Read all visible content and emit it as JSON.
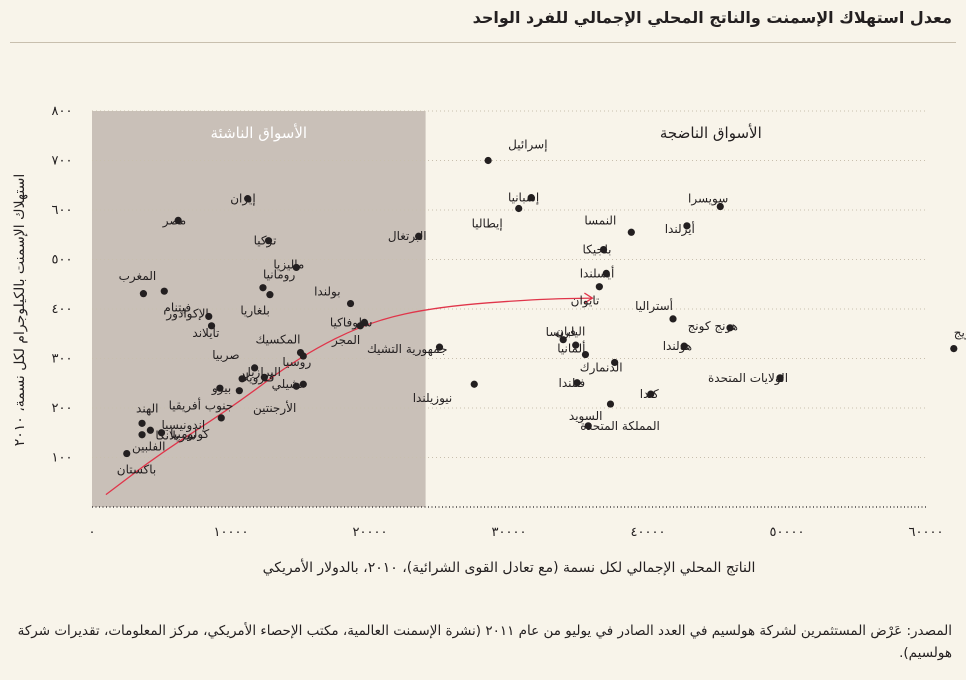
{
  "title": "معدل استهلاك الإسمنت والناتج المحلي الإجمالي للفرد الواحد",
  "source": "المصدر: عَرْض المستثمرين لشركة هولسيم في العدد الصادر في يوليو من عام ٢٠١١ (نشرة الإسمنت العالمية، مكتب الإحصاء الأمريكي، مركز المعلومات، تقديرات شركة هولسيم).",
  "colors": {
    "background": "#f8f4ea",
    "emerging_shade": "#c9c0b8",
    "point": "#231f20",
    "trend": "#e0354a"
  },
  "chart_data": {
    "type": "scatter",
    "xlabel": "الناتج المحلي الإجمالي لكل نسمة (مع تعادل القوى الشرائية)، ٢٠١٠، بالدولار الأمريكي",
    "ylabel": "استهلاك الإسمنت بالكيلوجرام لكل نسمة، ٢٠١٠",
    "xlim": [
      0,
      60000
    ],
    "ylim": [
      0,
      800
    ],
    "x_ticks": [
      {
        "v": 0,
        "label": "٠"
      },
      {
        "v": 10000,
        "label": "١٠٠٠٠"
      },
      {
        "v": 20000,
        "label": "٢٠٠٠٠"
      },
      {
        "v": 30000,
        "label": "٣٠٠٠٠"
      },
      {
        "v": 40000,
        "label": "٤٠٠٠٠"
      },
      {
        "v": 50000,
        "label": "٥٠٠٠٠"
      },
      {
        "v": 60000,
        "label": "٦٠٠٠٠"
      }
    ],
    "y_ticks": [
      {
        "v": 100,
        "label": "١٠٠"
      },
      {
        "v": 200,
        "label": "٢٠٠"
      },
      {
        "v": 300,
        "label": "٣٠٠"
      },
      {
        "v": 400,
        "label": "٤٠٠"
      },
      {
        "v": 500,
        "label": "٥٠٠"
      },
      {
        "v": 600,
        "label": "٦٠٠"
      },
      {
        "v": 700,
        "label": "٧٠٠"
      },
      {
        "v": 800,
        "label": "٨٠٠"
      }
    ],
    "regions": [
      {
        "label": "الأسواق الناشئة",
        "x_from": 0,
        "x_to": 24000,
        "shaded": true
      },
      {
        "label": "الأسواق الناضجة",
        "x_from": 24000,
        "x_to": 60000,
        "shaded": false
      }
    ],
    "points": [
      {
        "name": "إسرائيل",
        "x": 28500,
        "y": 700,
        "la": "end",
        "dx": 20,
        "dy": -16
      },
      {
        "name": "إسبانيا",
        "x": 31600,
        "y": 625,
        "la": "start",
        "dx": 8,
        "dy": 0
      },
      {
        "name": "إيطاليا",
        "x": 30700,
        "y": 603,
        "la": "start",
        "dx": -16,
        "dy": 15
      },
      {
        "name": "سويسرا",
        "x": 45200,
        "y": 607,
        "la": "start",
        "dx": 8,
        "dy": -8
      },
      {
        "name": "أيرلندا",
        "x": 42800,
        "y": 568,
        "la": "start",
        "dx": 8,
        "dy": 3
      },
      {
        "name": "النمسا",
        "x": 38800,
        "y": 555,
        "la": "start",
        "dx": -15,
        "dy": -12
      },
      {
        "name": "البرتغال",
        "x": 23500,
        "y": 547,
        "la": "start",
        "dx": 8,
        "dy": 0
      },
      {
        "name": "بلجيكا",
        "x": 36800,
        "y": 520,
        "la": "start",
        "dx": 8,
        "dy": 0
      },
      {
        "name": "أيسلندا",
        "x": 37000,
        "y": 472,
        "la": "start",
        "dx": 8,
        "dy": 0
      },
      {
        "name": "تايوان",
        "x": 36500,
        "y": 445,
        "la": "start",
        "dx": 0,
        "dy": 14
      },
      {
        "name": "أستراليا",
        "x": 41800,
        "y": 380,
        "la": "start",
        "dx": 0,
        "dy": -13
      },
      {
        "name": "هونج كونج",
        "x": 45900,
        "y": 362,
        "la": "start",
        "dx": 8,
        "dy": -2
      },
      {
        "name": "النرويج",
        "x": 62000,
        "y": 320,
        "la": "end",
        "dx": 0,
        "dy": -16
      },
      {
        "name": "سلوفاكيا",
        "x": 19600,
        "y": 373,
        "la": "start",
        "dx": 8,
        "dy": 0
      },
      {
        "name": "اليابان",
        "x": 33900,
        "y": 338,
        "la": "end",
        "dx": -8,
        "dy": -8
      },
      {
        "name": "فرنسا",
        "x": 34800,
        "y": 327,
        "la": "start",
        "dx": 0,
        "dy": -13
      },
      {
        "name": "هولندا",
        "x": 42600,
        "y": 325,
        "la": "start",
        "dx": 8,
        "dy": 0
      },
      {
        "name": "جمهورية التشيك",
        "x": 25000,
        "y": 323,
        "la": "start",
        "dx": 8,
        "dy": 2
      },
      {
        "name": "ألمانيا",
        "x": 35500,
        "y": 308,
        "la": "start",
        "dx": 0,
        "dy": -6
      },
      {
        "name": "الدنمارك",
        "x": 37600,
        "y": 292,
        "la": "start",
        "dx": 8,
        "dy": 5
      },
      {
        "name": "الولايات المتحدة",
        "x": 49500,
        "y": 261,
        "la": "start",
        "dx": 8,
        "dy": 0
      },
      {
        "name": "فنلندا",
        "x": 34900,
        "y": 251,
        "la": "start",
        "dx": 8,
        "dy": 0
      },
      {
        "name": "نيوزيلندا",
        "x": 27500,
        "y": 248,
        "la": "start",
        "dx": -22,
        "dy": 14
      },
      {
        "name": "كندا",
        "x": 40200,
        "y": 228,
        "la": "start",
        "dx": 8,
        "dy": 0
      },
      {
        "name": "السويد",
        "x": 37300,
        "y": 208,
        "la": "start",
        "dx": -8,
        "dy": 12
      },
      {
        "name": "المملكة المتحدة",
        "x": 35700,
        "y": 164,
        "la": "end",
        "dx": -8,
        "dy": 0
      },
      {
        "name": "إيران",
        "x": 11200,
        "y": 623,
        "la": "start",
        "dx": 8,
        "dy": 0
      },
      {
        "name": "مصر",
        "x": 6200,
        "y": 579,
        "la": "start",
        "dx": 8,
        "dy": 0
      },
      {
        "name": "تركيا",
        "x": 12700,
        "y": 538,
        "la": "start",
        "dx": 8,
        "dy": 0
      },
      {
        "name": "ماليزيا",
        "x": 14700,
        "y": 484,
        "la": "start",
        "dx": 8,
        "dy": -3
      },
      {
        "name": "رومانيا",
        "x": 12300,
        "y": 443,
        "la": "end",
        "dx": 0,
        "dy": -13
      },
      {
        "name": "المغرب",
        "x": 5200,
        "y": 436,
        "la": "start",
        "dx": -8,
        "dy": -15
      },
      {
        "name": "فيتنام",
        "x": 3700,
        "y": 431,
        "la": "end",
        "dx": 20,
        "dy": 14
      },
      {
        "name": "بلغاريا",
        "x": 12800,
        "y": 429,
        "la": "start",
        "dx": 0,
        "dy": 16
      },
      {
        "name": "بولندا",
        "x": 18600,
        "y": 411,
        "la": "start",
        "dx": -10,
        "dy": -12
      },
      {
        "name": "الإكوادور",
        "x": 8400,
        "y": 385,
        "la": "start",
        "dx": 0,
        "dy": -3
      },
      {
        "name": "تايلاند",
        "x": 8600,
        "y": 366,
        "la": "start",
        "dx": 8,
        "dy": 7
      },
      {
        "name": "المجر",
        "x": 19300,
        "y": 366,
        "la": "start",
        "dx": 0,
        "dy": 14
      },
      {
        "name": "المكسيك",
        "x": 15000,
        "y": 312,
        "la": "start",
        "dx": 0,
        "dy": -13
      },
      {
        "name": "روسيا",
        "x": 15200,
        "y": 305,
        "la": "start",
        "dx": 8,
        "dy": 6
      },
      {
        "name": "صربيا",
        "x": 11700,
        "y": 281,
        "la": "start",
        "dx": -15,
        "dy": -13
      },
      {
        "name": "فنزويلا",
        "x": 12400,
        "y": 262,
        "la": "start",
        "dx": 10,
        "dy": 0
      },
      {
        "name": "البرازيل",
        "x": 10800,
        "y": 259,
        "la": "end",
        "dx": 0,
        "dy": -7
      },
      {
        "name": "تشيلي",
        "x": 15200,
        "y": 248,
        "la": "start",
        "dx": 0,
        "dy": 0
      },
      {
        "name": "بيرو",
        "x": 9200,
        "y": 240,
        "la": "end",
        "dx": -8,
        "dy": 0
      },
      {
        "name": "جنوب أفريقيا",
        "x": 10600,
        "y": 235,
        "la": "start",
        "dx": -6,
        "dy": 15
      },
      {
        "name": "الأرجنتين",
        "x": 14700,
        "y": 244,
        "la": "start",
        "dx": 0,
        "dy": 22
      },
      {
        "name": "الهند",
        "x": 3600,
        "y": 169,
        "la": "end",
        "dx": -6,
        "dy": -15
      },
      {
        "name": "إندونيسيا",
        "x": 5000,
        "y": 150,
        "la": "end",
        "dx": 0,
        "dy": -8
      },
      {
        "name": "سريلانكا",
        "x": 4200,
        "y": 155,
        "la": "end",
        "dx": 5,
        "dy": 5
      },
      {
        "name": "الفلبين",
        "x": 3600,
        "y": 146,
        "la": "end",
        "dx": -10,
        "dy": 12
      },
      {
        "name": "كولومبيا",
        "x": 9300,
        "y": 180,
        "la": "start",
        "dx": -12,
        "dy": 16
      },
      {
        "name": "باكستان",
        "x": 2500,
        "y": 108,
        "la": "end",
        "dx": -10,
        "dy": 16
      }
    ],
    "trend": {
      "description_points": [
        [
          1000,
          25
        ],
        [
          5000,
          110
        ],
        [
          10000,
          200
        ],
        [
          15000,
          305
        ],
        [
          20000,
          375
        ],
        [
          25000,
          405
        ],
        [
          32000,
          420
        ],
        [
          36000,
          422
        ]
      ]
    }
  }
}
